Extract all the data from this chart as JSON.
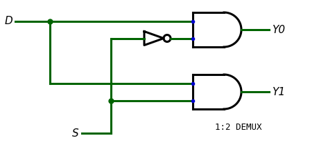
{
  "bg_color": "#ffffff",
  "wire_color": "#006400",
  "gate_color": "#000000",
  "dot_color": "#006400",
  "blue_dot_color": "#0000cd",
  "label_color": "#000000",
  "title": "1:2 DEMUX",
  "input_D_label": "D",
  "input_S_label": "S",
  "out0_label": "Y0",
  "out1_label": "Y1",
  "figw": 4.73,
  "figh": 2.13,
  "dpi": 100
}
